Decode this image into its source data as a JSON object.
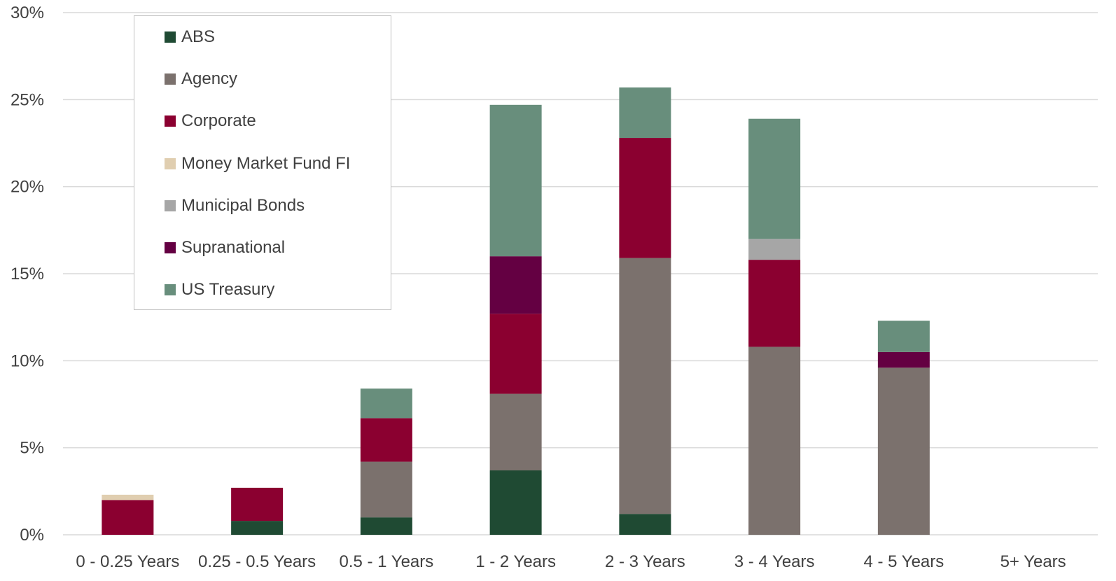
{
  "chart_data": {
    "type": "bar",
    "stacked": true,
    "categories": [
      "0 - 0.25 Years",
      "0.25 - 0.5 Years",
      "0.5 - 1 Years",
      "1 - 2 Years",
      "2 - 3 Years",
      "3 - 4 Years",
      "4 - 5 Years",
      "5+ Years"
    ],
    "series": [
      {
        "name": "ABS",
        "color": "#1f4a33",
        "values": [
          0,
          0.8,
          1.0,
          3.7,
          1.2,
          0,
          0,
          0
        ]
      },
      {
        "name": "Agency",
        "color": "#7b716d",
        "values": [
          0,
          0,
          3.2,
          4.4,
          14.7,
          10.8,
          9.6,
          0
        ]
      },
      {
        "name": "Corporate",
        "color": "#8b0030",
        "values": [
          2.0,
          1.9,
          2.5,
          4.6,
          6.9,
          5.0,
          0,
          0
        ]
      },
      {
        "name": "Money Market Fund FI",
        "color": "#e0ceb0",
        "values": [
          0.3,
          0,
          0,
          0,
          0,
          0,
          0,
          0
        ]
      },
      {
        "name": "Municipal Bonds",
        "color": "#a6a6a6",
        "values": [
          0,
          0,
          0,
          0,
          0,
          1.2,
          0,
          0
        ]
      },
      {
        "name": "Supranational",
        "color": "#640042",
        "values": [
          0,
          0,
          0,
          3.3,
          0,
          0,
          0.9,
          0
        ]
      },
      {
        "name": "US Treasury",
        "color": "#688e7c",
        "values": [
          0,
          0,
          1.7,
          8.7,
          2.9,
          6.9,
          1.8,
          0
        ]
      }
    ],
    "ylim": [
      0,
      30
    ],
    "yticks": [
      0,
      5,
      10,
      15,
      20,
      25,
      30
    ],
    "ytick_labels": [
      "0%",
      "5%",
      "10%",
      "15%",
      "20%",
      "25%",
      "30%"
    ],
    "grid": true,
    "legend_position": "top-left",
    "title": "",
    "xlabel": "",
    "ylabel": ""
  }
}
